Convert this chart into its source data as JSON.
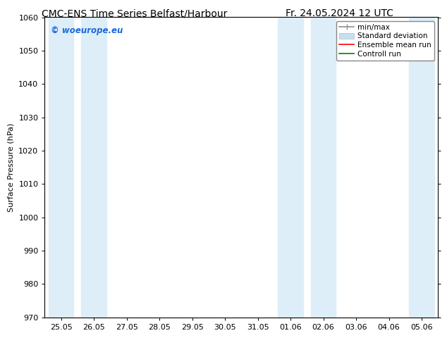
{
  "title_left": "CMC-ENS Time Series Belfast/Harbour",
  "title_right": "Fr. 24.05.2024 12 UTC",
  "ylabel": "Surface Pressure (hPa)",
  "ylim": [
    970,
    1060
  ],
  "yticks": [
    970,
    980,
    990,
    1000,
    1010,
    1020,
    1030,
    1040,
    1050,
    1060
  ],
  "xtick_labels": [
    "25.05",
    "26.05",
    "27.05",
    "28.05",
    "29.05",
    "30.05",
    "31.05",
    "01.06",
    "02.06",
    "03.06",
    "04.06",
    "05.06"
  ],
  "shaded_band_indices": [
    0,
    1,
    7,
    8,
    11
  ],
  "band_color": "#ddeef8",
  "watermark": "© woeurope.eu",
  "watermark_color": "#1a6adb",
  "legend_labels": [
    "min/max",
    "Standard deviation",
    "Ensemble mean run",
    "Controll run"
  ],
  "legend_line_color": "#909090",
  "legend_std_color": "#c8dff0",
  "legend_ens_color": "#ff0000",
  "legend_ctrl_color": "#008000",
  "bg_color": "#ffffff",
  "title_fontsize": 10,
  "axis_label_fontsize": 8,
  "tick_fontsize": 8
}
